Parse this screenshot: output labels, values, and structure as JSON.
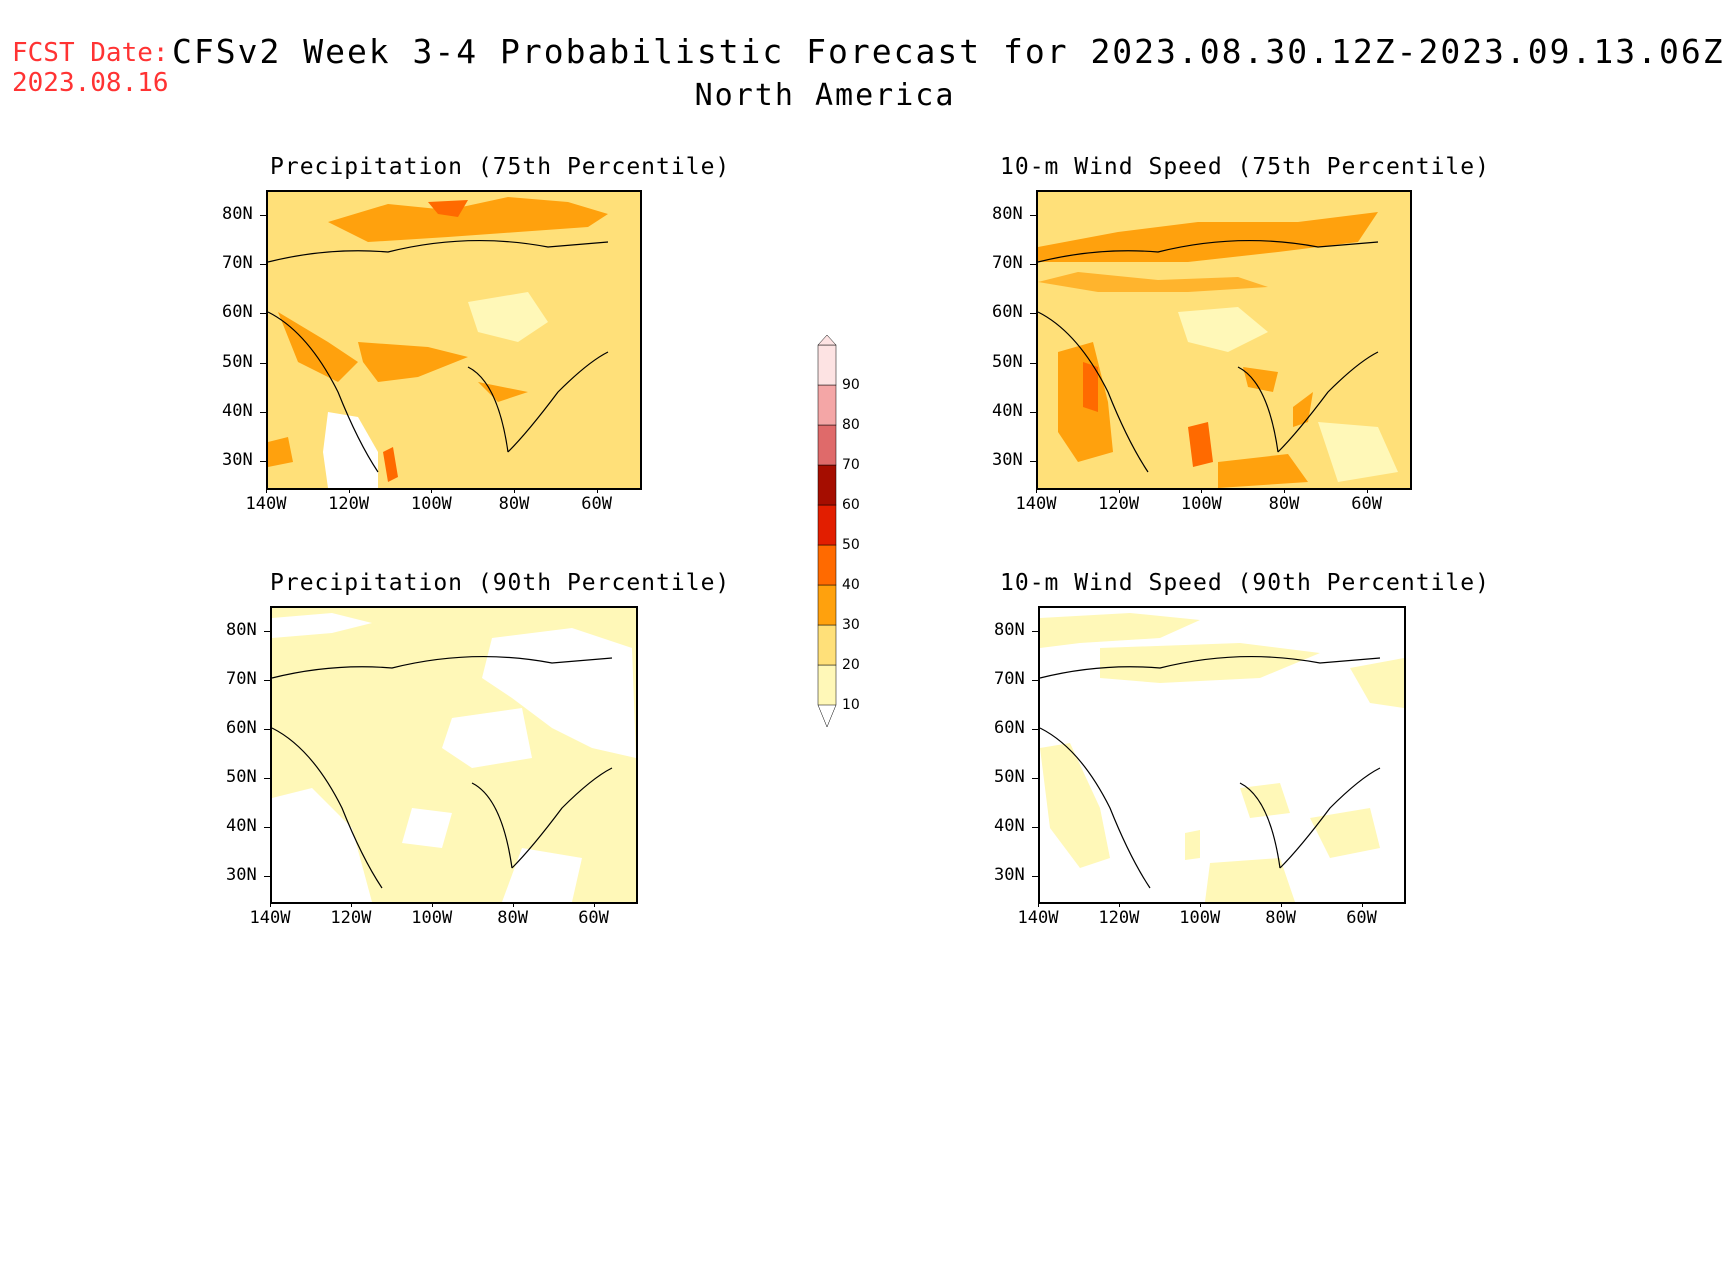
{
  "header": {
    "fcst_label": "FCST Date:",
    "fcst_date": "2023.08.16",
    "title": "CFSv2 Week 3-4 Probabilistic Forecast for 2023.08.30.12Z-2023.09.13.06Z",
    "region": "North America"
  },
  "axes": {
    "lat_labels": [
      "80N",
      "70N",
      "60N",
      "50N",
      "40N",
      "30N"
    ],
    "lon_labels": [
      "140W",
      "120W",
      "100W",
      "80W",
      "60W"
    ]
  },
  "panels": [
    {
      "title": "Precipitation (75th Percentile)",
      "dominant_level": "20-30"
    },
    {
      "title": "10-m Wind Speed (75th Percentile)",
      "dominant_level": "20-30"
    },
    {
      "title": "Precipitation (90th Percentile)",
      "dominant_level": "10-20"
    },
    {
      "title": "10-m Wind Speed (90th Percentile)",
      "dominant_level": "below 10"
    }
  ],
  "colorbar": {
    "levels": [
      "10",
      "20",
      "30",
      "40",
      "50",
      "60",
      "70",
      "80",
      "90"
    ],
    "colors": [
      "#fff8b8",
      "#ffe079",
      "#ffa10d",
      "#ff6a00",
      "#e21e00",
      "#a50d00",
      "#df6a6a",
      "#f4a6a6",
      "#fde3e3"
    ]
  }
}
